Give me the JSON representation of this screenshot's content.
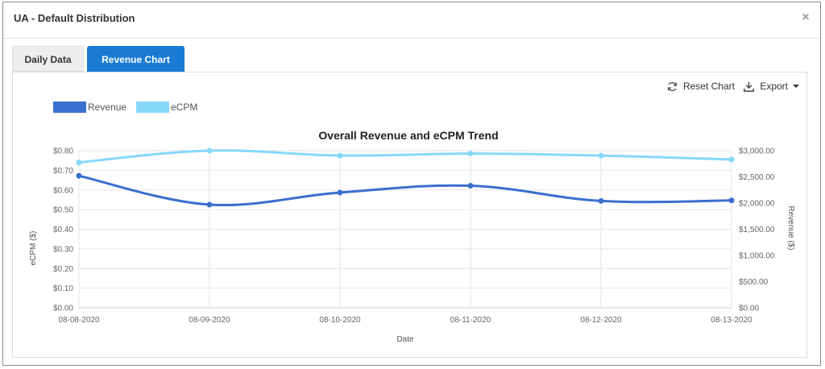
{
  "modal": {
    "title": "UA - Default Distribution",
    "close_symbol": "×"
  },
  "tabs": [
    {
      "label": "Daily Data",
      "active": false
    },
    {
      "label": "Revenue Chart",
      "active": true
    }
  ],
  "toolbar": {
    "reset_label": "Reset Chart",
    "export_label": "Export"
  },
  "colors": {
    "revenue": "#3b6fcf",
    "ecpm": "#86d8fa",
    "accent": "#1a7bd4"
  },
  "chart_data": {
    "type": "line",
    "title": "Overall Revenue and eCPM Trend",
    "xlabel": "Date",
    "ylabel_left": "eCPM ($)",
    "ylabel_right": "Revenue ($)",
    "categories": [
      "08-08-2020",
      "08-09-2020",
      "08-10-2020",
      "08-11-2020",
      "08-12-2020",
      "08-13-2020"
    ],
    "ylim_left": [
      0,
      0.8
    ],
    "ylim_right": [
      0,
      3000
    ],
    "yticks_left": [
      "$0.00",
      "$0.10",
      "$0.20",
      "$0.30",
      "$0.40",
      "$0.50",
      "$0.60",
      "$0.70",
      "$0.80"
    ],
    "yticks_right": [
      "$0.00",
      "$500.00",
      "$1,000.00",
      "$1,500.00",
      "$2,000.00",
      "$2,500.00",
      "$3,000.00"
    ],
    "grid": true,
    "legend_position": "top-left",
    "series": [
      {
        "name": "Revenue",
        "axis": "right",
        "values": [
          2520,
          1970,
          2200,
          2330,
          2040,
          2050
        ]
      },
      {
        "name": "eCPM",
        "axis": "left",
        "values": [
          0.74,
          0.8,
          0.775,
          0.785,
          0.775,
          0.755
        ]
      }
    ]
  }
}
